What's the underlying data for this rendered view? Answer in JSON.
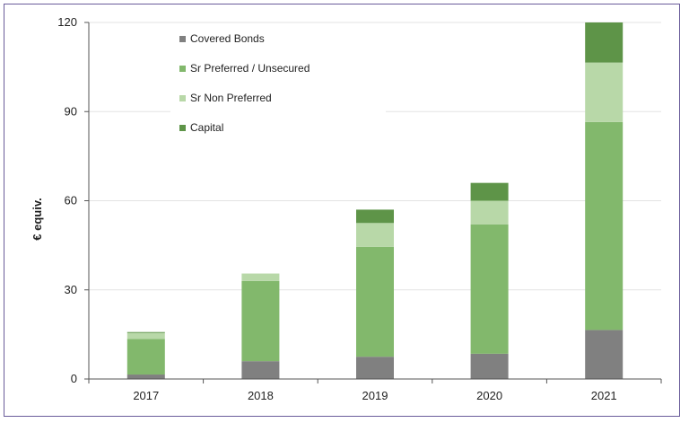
{
  "chart_data": {
    "type": "bar",
    "stacked": true,
    "categories": [
      "2017",
      "2018",
      "2019",
      "2020",
      "2021"
    ],
    "series": [
      {
        "name": "Covered Bonds",
        "color": "#808080",
        "values": [
          1.5,
          6,
          7.5,
          8.5,
          16.5
        ]
      },
      {
        "name": "Sr Preferred / Unsecured",
        "color": "#82b86c",
        "values": [
          12,
          27,
          37,
          43.5,
          70
        ]
      },
      {
        "name": "Sr Non Preferred",
        "color": "#b8d8a8",
        "values": [
          2,
          2.5,
          8,
          8,
          20
        ]
      },
      {
        "name": "Capital",
        "color": "#5e9448",
        "values": [
          0.3,
          0,
          4.5,
          6,
          13.5
        ]
      }
    ],
    "ylabel": "€ equiv.",
    "ylim": [
      0,
      120
    ],
    "yticks": [
      "0",
      "30",
      "60",
      "90",
      "120"
    ],
    "grid": true,
    "legend": "top-left"
  }
}
